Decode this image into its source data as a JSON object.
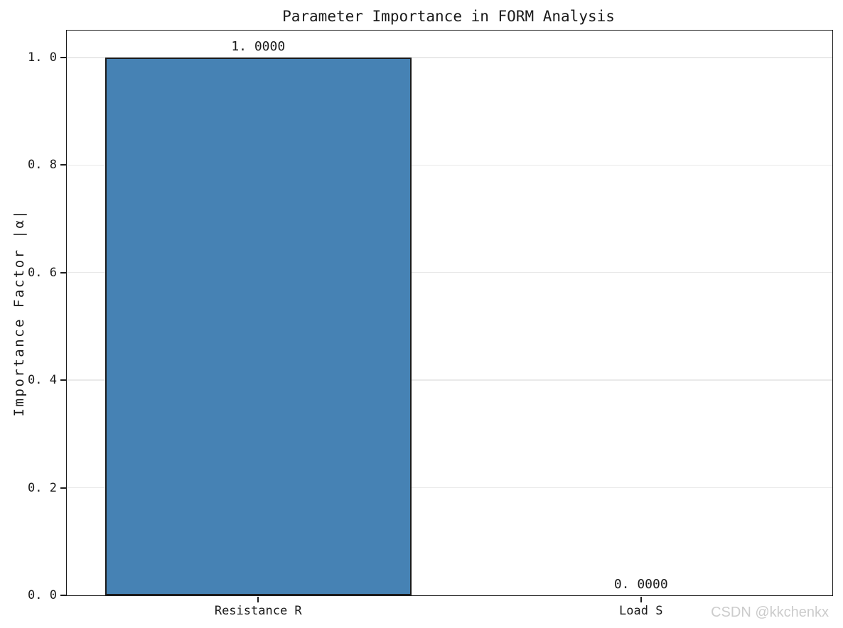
{
  "figure": {
    "watermark": "CSDN @kkchenkx"
  },
  "chart_data": {
    "type": "bar",
    "title": "Parameter Importance in FORM Analysis",
    "categories": [
      "Resistance R",
      "Load S"
    ],
    "values": [
      1.0,
      0.0
    ],
    "value_labels": [
      "1. 0000",
      "0. 0000"
    ],
    "xlabel": "",
    "ylabel": "Importance Factor |α|",
    "ylim": [
      0,
      1.05
    ],
    "yticks": [
      0.0,
      0.2,
      0.4,
      0.6,
      0.8,
      1.0
    ],
    "ytick_labels": [
      "0. 0",
      "0. 2",
      "0. 4",
      "0. 6",
      "0. 8",
      "1. 0"
    ],
    "bar_width_fraction": 0.8,
    "grid": "horizontal",
    "legend_position": "none",
    "colors": {
      "bar_fill": "#4682b4",
      "bar_edge": "#1b1b1b",
      "grid": "#e9e9e9",
      "spine": "#1c1c1c",
      "tick": "#1c1c1c",
      "text": "#1a1a1a",
      "watermark": "#cccccc",
      "background": "#ffffff"
    }
  }
}
